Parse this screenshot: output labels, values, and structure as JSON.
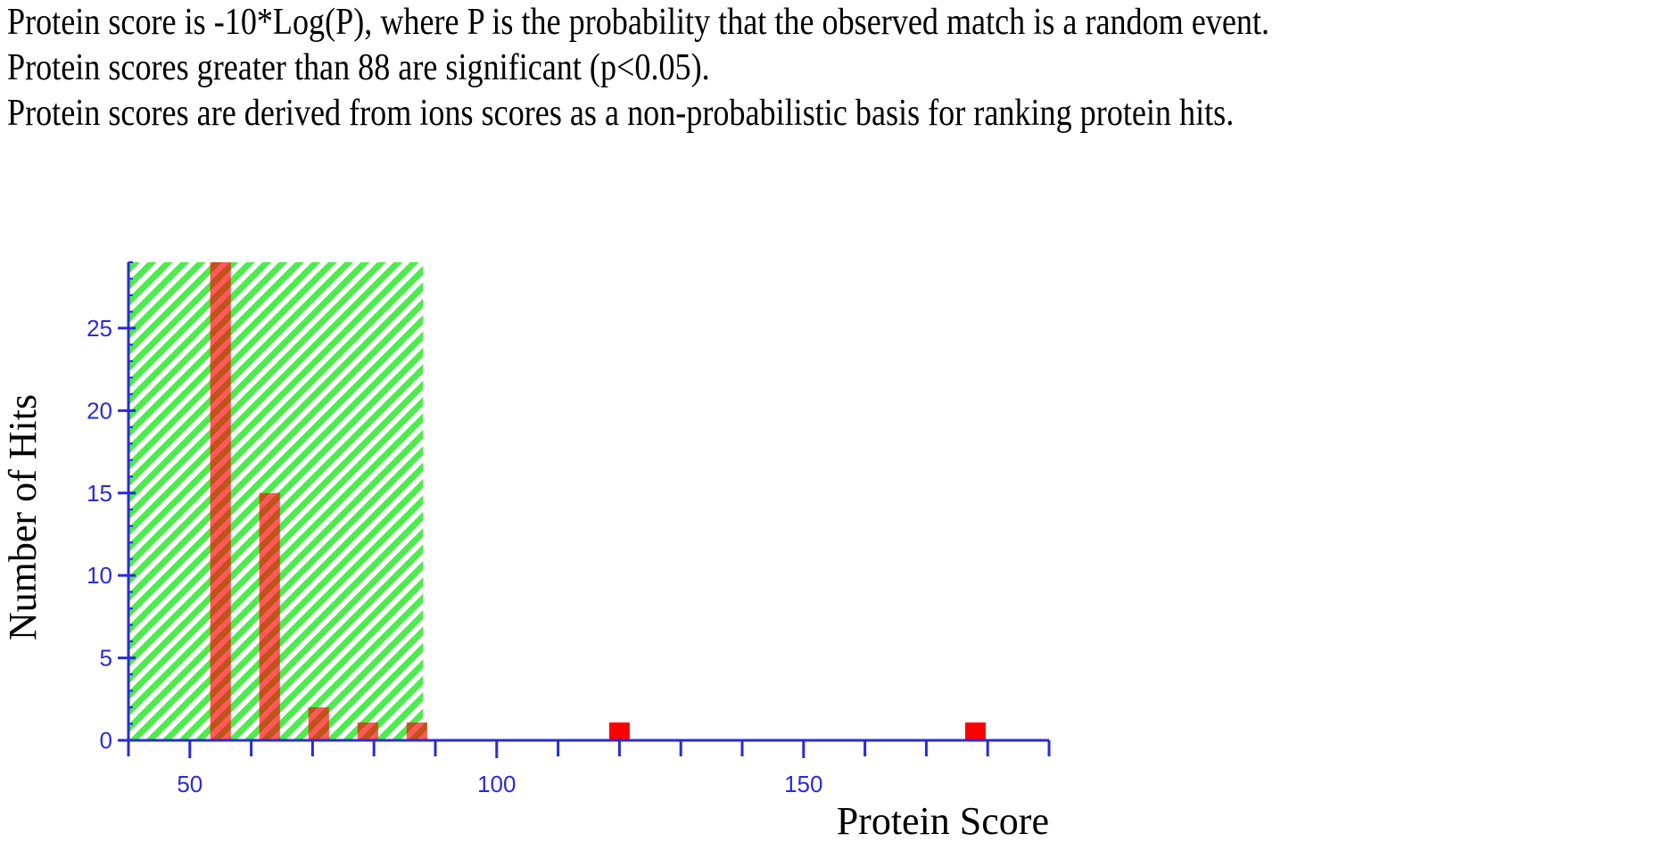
{
  "notes": [
    "Protein score is -10*Log(P), where P is the probability that the observed match is a random event.",
    "Protein scores greater than 88 are significant (p<0.05).",
    "Protein scores are derived from ions scores as a non-probabilistic basis for ranking protein hits."
  ],
  "chart_data": {
    "type": "bar",
    "title": "",
    "xlabel": "Protein Score",
    "ylabel": "Number of Hits",
    "x": [
      55,
      63,
      71,
      79,
      87,
      120,
      178
    ],
    "values": [
      29,
      15,
      2,
      1,
      1,
      1,
      1
    ],
    "xlim": [
      40,
      190
    ],
    "ylim": [
      0,
      29
    ],
    "xticks": [
      50,
      100,
      150
    ],
    "yticks": [
      0,
      5,
      10,
      15,
      20,
      25
    ],
    "significance_threshold": 88,
    "grid": false,
    "colors": {
      "bar": "#ff0000",
      "shade_stripe": "#44ee44",
      "axis": "#2b2bd6",
      "tick_label": "#2b2bd6"
    }
  }
}
